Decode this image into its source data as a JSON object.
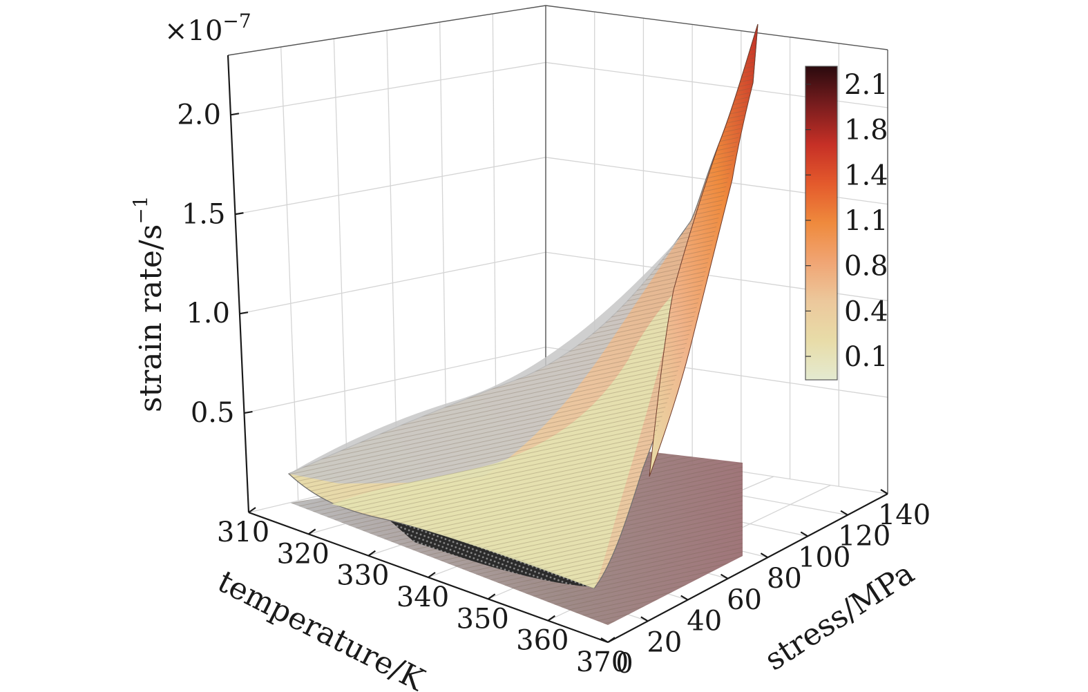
{
  "chart_data": {
    "type": "surface3d",
    "title": "",
    "multiplier": {
      "base": "×10",
      "exponent": "−7"
    },
    "x_axis": {
      "label": "temperature/K",
      "ticks": [
        "310",
        "320",
        "330",
        "340",
        "350",
        "360",
        "370"
      ],
      "range": [
        310,
        370
      ]
    },
    "y_axis": {
      "label": "stress/MPa",
      "ticks": [
        "0",
        "20",
        "40",
        "60",
        "80",
        "100",
        "120",
        "140"
      ],
      "range": [
        0,
        140
      ]
    },
    "z_axis": {
      "label_base": "strain rate/s",
      "label_exponent": "−1",
      "ticks": [
        "0.5",
        "1.0",
        "1.5",
        "2.0"
      ],
      "range": [
        0,
        2.3
      ]
    },
    "colorbar": {
      "ticks": [
        "2.1",
        "1.8",
        "1.4",
        "1.1",
        "0.8",
        "0.4",
        "0.1"
      ],
      "colors": [
        "#2a0a0e",
        "#7a1d1e",
        "#c63026",
        "#e45a2c",
        "#ef8a3d",
        "#f0a574",
        "#ecc89c",
        "#e8dca8",
        "#e4ead0"
      ]
    },
    "surface_summary": {
      "z_at_370K_140MPa": 2.25,
      "z_ridge_max_at_370K_100MPa": 1.5,
      "z_low_temp_region": 0.3,
      "grid_on": true
    }
  }
}
